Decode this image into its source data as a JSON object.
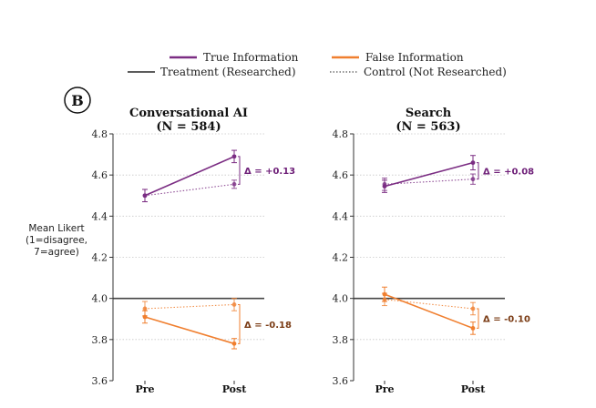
{
  "panel_label": "B",
  "legend": {
    "true_info": "True Information",
    "false_info": "False Information",
    "treatment": "Treatment (Researched)",
    "control": "Control (Not Researched)"
  },
  "colors": {
    "true": "#7b2d83",
    "false": "#f07f2f",
    "true_delta_text": "#6e1f78",
    "false_delta_text": "#7a3b14",
    "reference": "#444444"
  },
  "chart_data": [
    {
      "type": "line",
      "title_line1": "Conversational AI",
      "title_line2": "(N = 584)",
      "ylabel_lines": [
        "Mean Likert",
        "(1=disagree,",
        "7=agree)"
      ],
      "categories": [
        "Pre",
        "Post"
      ],
      "ylim": [
        3.6,
        4.8
      ],
      "yticks": [
        "3.6",
        "3.8",
        "4.0",
        "4.2",
        "4.4",
        "4.6",
        "4.8"
      ],
      "reference_line": 4.0,
      "series": [
        {
          "name": "True Information - Treatment (Researched)",
          "group": "true",
          "style": "solid",
          "values": [
            4.5,
            4.69
          ],
          "errors": [
            0.03,
            0.03
          ]
        },
        {
          "name": "True Information - Control (Not Researched)",
          "group": "true",
          "style": "dotted",
          "values": [
            4.5,
            4.555
          ],
          "errors": [
            0.03,
            0.02
          ]
        },
        {
          "name": "False Information - Treatment (Researched)",
          "group": "false",
          "style": "solid",
          "values": [
            3.91,
            3.78
          ],
          "errors": [
            0.03,
            0.025
          ]
        },
        {
          "name": "False Information - Control (Not Researched)",
          "group": "false",
          "style": "dotted",
          "values": [
            3.95,
            3.97
          ],
          "errors": [
            0.035,
            0.03
          ]
        }
      ],
      "annotations": [
        {
          "group": "true",
          "text": "Δ = +0.13"
        },
        {
          "group": "false",
          "text": "Δ = -0.18"
        }
      ]
    },
    {
      "type": "line",
      "title_line1": "Search",
      "title_line2": "(N = 563)",
      "categories": [
        "Pre",
        "Post"
      ],
      "ylim": [
        3.6,
        4.8
      ],
      "yticks": [
        "3.6",
        "3.8",
        "4.0",
        "4.2",
        "4.4",
        "4.6",
        "4.8"
      ],
      "reference_line": 4.0,
      "series": [
        {
          "name": "True Information - Treatment (Researched)",
          "group": "true",
          "style": "solid",
          "values": [
            4.545,
            4.66
          ],
          "errors": [
            0.03,
            0.035
          ]
        },
        {
          "name": "True Information - Control (Not Researched)",
          "group": "true",
          "style": "dotted",
          "values": [
            4.555,
            4.58
          ],
          "errors": [
            0.03,
            0.025
          ]
        },
        {
          "name": "False Information - Treatment (Researched)",
          "group": "false",
          "style": "solid",
          "values": [
            4.02,
            3.855
          ],
          "errors": [
            0.035,
            0.03
          ]
        },
        {
          "name": "False Information - Control (Not Researched)",
          "group": "false",
          "style": "dotted",
          "values": [
            3.995,
            3.95
          ],
          "errors": [
            0.03,
            0.03
          ]
        }
      ],
      "annotations": [
        {
          "group": "true",
          "text": "Δ = +0.08"
        },
        {
          "group": "false",
          "text": "Δ = -0.10"
        }
      ]
    }
  ]
}
